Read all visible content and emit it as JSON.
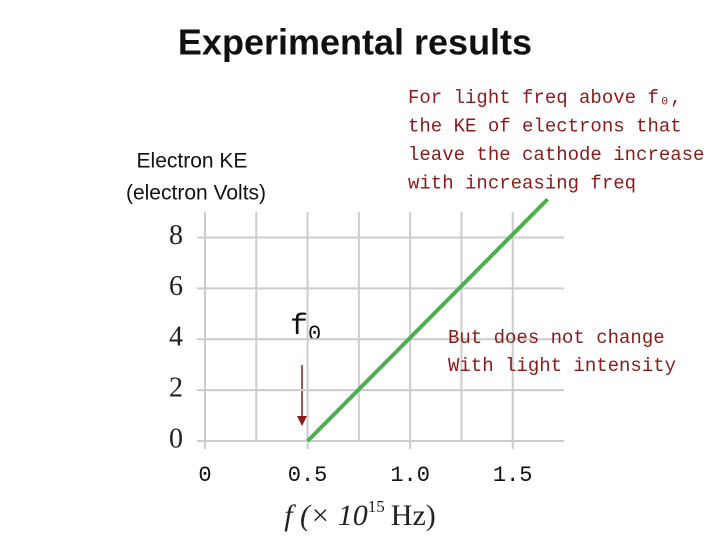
{
  "chart_data": {
    "type": "line",
    "title": "Experimental results",
    "ylabel": [
      "Electron KE",
      "(electron Volts)"
    ],
    "xlabel": {
      "base": "f (× 10",
      "sup": "15",
      "unit": "Hz)"
    },
    "x": [
      0.5,
      1.67
    ],
    "series": [
      {
        "name": "KE",
        "color": "#4cb050",
        "values": [
          0,
          9.5
        ]
      }
    ],
    "xlim": [
      0,
      1.75
    ],
    "ylim": [
      0,
      9
    ],
    "xticks": [
      0,
      0.5,
      {
        "value": 1,
        "label": "1.0"
      },
      1.5
    ],
    "x_minor_ticks": [
      0.25,
      0.75,
      1.25
    ],
    "yticks": [
      0,
      2,
      4,
      6,
      8
    ],
    "grid": true,
    "annotations": [
      {
        "text": "f",
        "sub": "0"
      },
      {
        "lines": [
          "For light freq above f₀,",
          "the KE of electrons that",
          "leave the cathode increase",
          "with increasing freq"
        ]
      },
      {
        "lines": [
          "But does not change",
          "With light intensity"
        ]
      }
    ]
  }
}
